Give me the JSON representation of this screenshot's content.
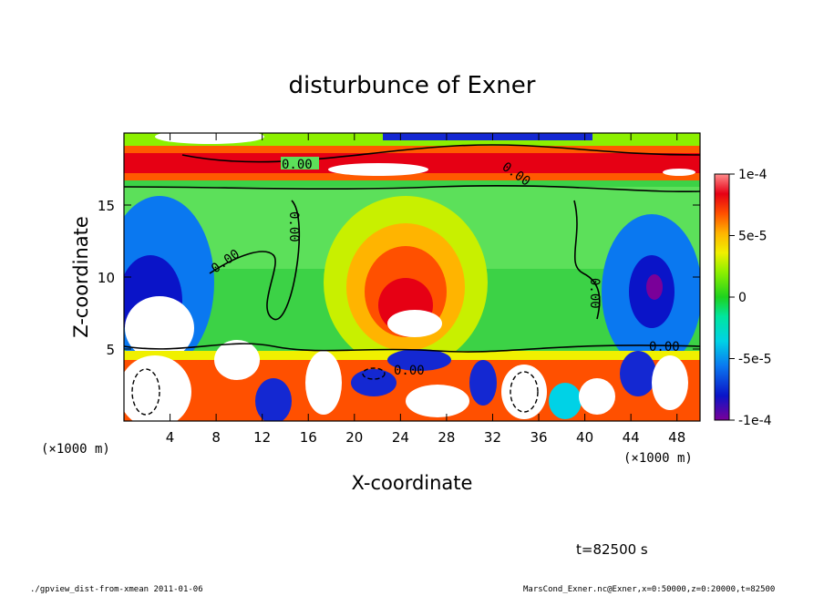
{
  "chart_data": {
    "type": "heatmap",
    "title": "disturbunce of Exner",
    "xlabel": "X-coordinate",
    "ylabel": "Z-coordinate",
    "x_unit": "(×1000 m)",
    "y_unit": "(×1000 m)",
    "xlim": [
      0,
      50
    ],
    "ylim": [
      0,
      20
    ],
    "x_ticks": [
      "4",
      "8",
      "12",
      "16",
      "20",
      "24",
      "28",
      "32",
      "36",
      "40",
      "44",
      "48"
    ],
    "x_tick_values": [
      4,
      8,
      12,
      16,
      20,
      24,
      28,
      32,
      36,
      40,
      44,
      48
    ],
    "y_ticks": [
      "5",
      "10",
      "15"
    ],
    "y_tick_values": [
      5,
      10,
      15
    ],
    "colorbar": {
      "ticks": [
        "1e-4",
        "5e-5",
        "0",
        "-5e-5",
        "-1e-4"
      ],
      "tick_values": [
        0.0001,
        5e-05,
        0,
        -5e-05,
        -0.0001
      ],
      "range": [
        -0.0001,
        0.0001
      ]
    },
    "contour_labels": [
      "0.00",
      "0.00",
      "0.00",
      "0.00",
      "0.00",
      "0.00",
      "0.00"
    ],
    "colormap": [
      "#7a0099",
      "#0a14c8",
      "#0a78f0",
      "#00d2e6",
      "#00e6a0",
      "#1ed21e",
      "#8cf000",
      "#f0f000",
      "#ffb400",
      "#ff5000",
      "#e60014",
      "#ff8c8c"
    ]
  },
  "annotation": {
    "time": "t=82500 s"
  },
  "footer": {
    "left": "./gpview_dist-from-xmean  2011-01-06",
    "right": "MarsCond_Exner.nc@Exner,x=0:50000,z=0:20000,t=82500"
  }
}
